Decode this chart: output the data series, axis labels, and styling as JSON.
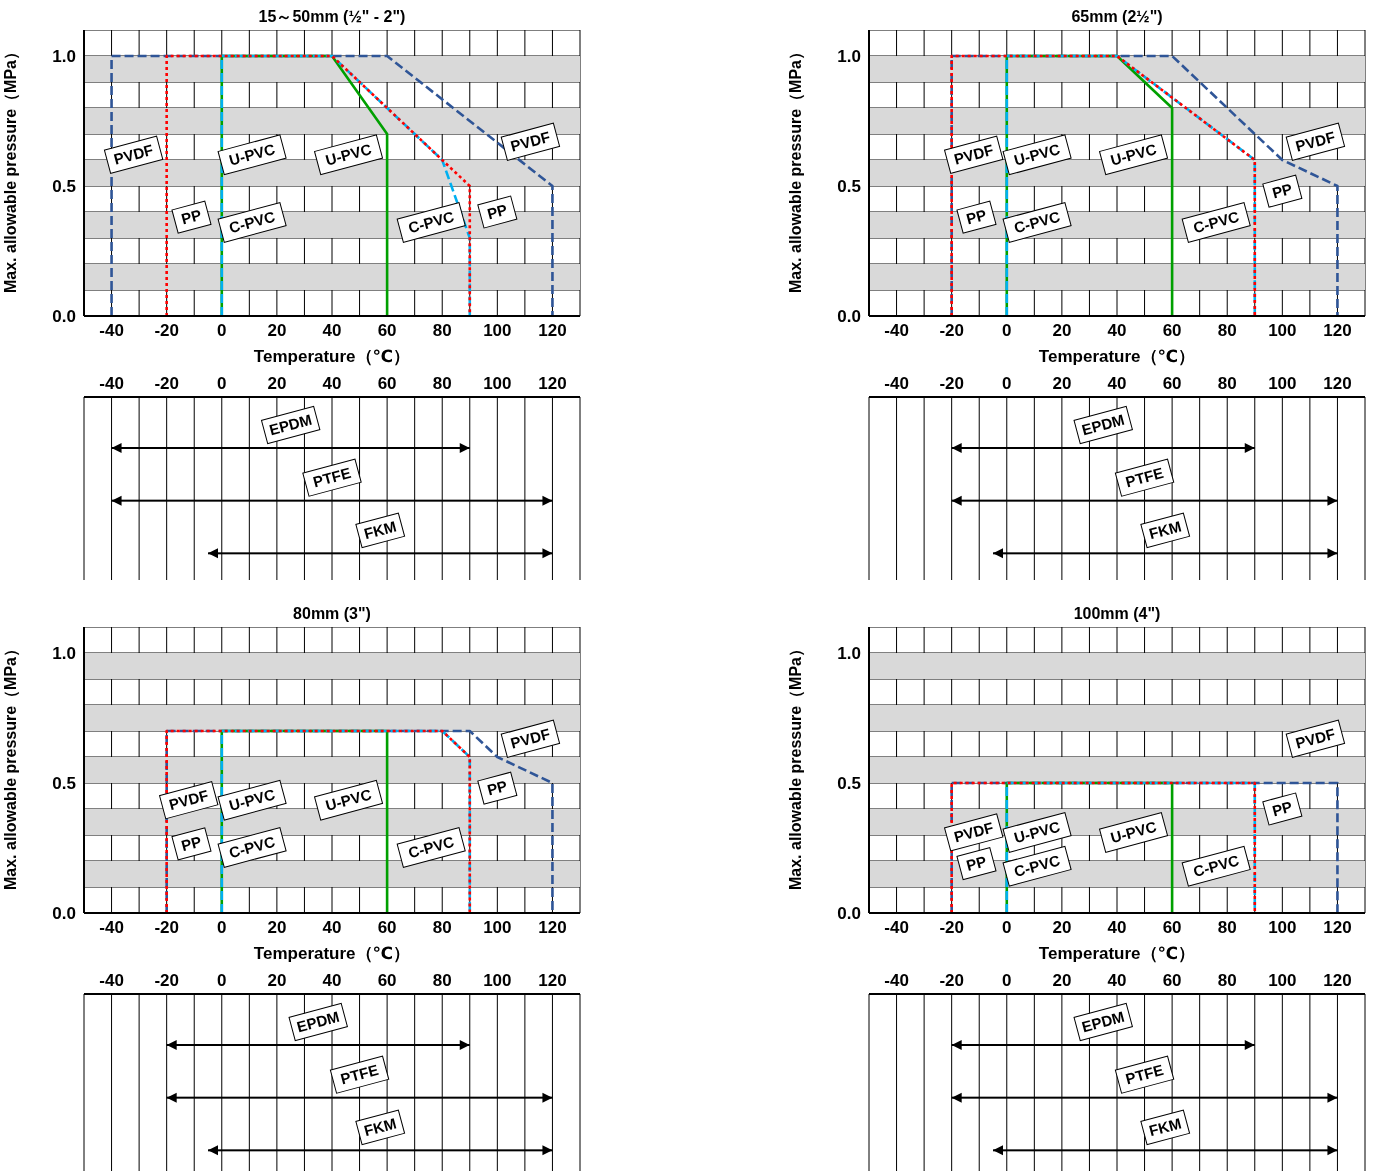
{
  "chart_data": [
    {
      "type": "line",
      "title": "15～50mm (½\" - 2\")",
      "xlabel": "Temperature（℃）",
      "ylabel": "Max. allowable pressure（MPa）",
      "xlim": [
        -50,
        130
      ],
      "xticks": [
        {
          "value": -50,
          "label": null
        },
        -40,
        {
          "value": -30,
          "label": null
        },
        -20,
        {
          "value": -10,
          "label": null
        },
        0,
        {
          "value": 10,
          "label": null
        },
        20,
        {
          "value": 30,
          "label": null
        },
        40,
        {
          "value": 50,
          "label": null
        },
        60,
        {
          "value": 70,
          "label": null
        },
        80,
        {
          "value": 90,
          "label": null
        },
        100,
        {
          "value": 110,
          "label": null
        },
        120,
        {
          "value": 130,
          "label": null
        }
      ],
      "ylim": [
        0,
        1.1
      ],
      "yticks": [
        {
          "value": 0,
          "label": "0.0"
        },
        {
          "value": 0.1,
          "label": null
        },
        {
          "value": 0.2,
          "label": null
        },
        {
          "value": 0.3,
          "label": null
        },
        {
          "value": 0.4,
          "label": null
        },
        {
          "value": 0.5,
          "label": "0.5"
        },
        {
          "value": 0.6,
          "label": null
        },
        {
          "value": 0.7,
          "label": null
        },
        {
          "value": 0.8,
          "label": null
        },
        {
          "value": 0.9,
          "label": null
        },
        {
          "value": 1,
          "label": "1.0"
        },
        {
          "value": 1.1,
          "label": null
        }
      ],
      "grid": true,
      "legend": false,
      "bands": [
        {
          "axis": "y",
          "from": 0.1,
          "to": 0.2,
          "color": "#d9d9d9"
        },
        {
          "axis": "y",
          "from": 0.3,
          "to": 0.4,
          "color": "#d9d9d9"
        },
        {
          "axis": "y",
          "from": 0.5,
          "to": 0.6,
          "color": "#d9d9d9"
        },
        {
          "axis": "y",
          "from": 0.7,
          "to": 0.8,
          "color": "#d9d9d9"
        },
        {
          "axis": "y",
          "from": 0.9,
          "to": 1.0,
          "color": "#d9d9d9"
        }
      ],
      "series": [
        {
          "name": "PVDF",
          "color": "#2f5597",
          "line_style": "dashed",
          "x": [
            -40,
            -40,
            60,
            120,
            120
          ],
          "values": [
            0,
            1.0,
            1.0,
            0.5,
            0
          ]
        },
        {
          "name": "U-PVC",
          "color": "#00a000",
          "line_style": "solid",
          "x": [
            0,
            0,
            40,
            60,
            60
          ],
          "values": [
            0,
            1.0,
            1.0,
            0.7,
            0
          ]
        },
        {
          "name": "C-PVC",
          "color": "#00b0f0",
          "line_style": "dashed",
          "x": [
            0,
            0,
            40,
            80,
            90,
            90
          ],
          "values": [
            0,
            1.0,
            1.0,
            0.6,
            0.3,
            0
          ]
        },
        {
          "name": "PP",
          "color": "#ff0000",
          "line_style": "dotted",
          "x": [
            -20,
            -20,
            40,
            80,
            90,
            90
          ],
          "values": [
            0,
            1.0,
            1.0,
            0.6,
            0.5,
            0
          ]
        }
      ]
    },
    {
      "type": "line",
      "title": "65mm (2½\")",
      "xlabel": "Temperature（℃）",
      "ylabel": "Max. allowable pressure（MPa）",
      "xlim": [
        -50,
        130
      ],
      "xticks": [
        {
          "value": -50,
          "label": null
        },
        -40,
        {
          "value": -30,
          "label": null
        },
        -20,
        {
          "value": -10,
          "label": null
        },
        0,
        {
          "value": 10,
          "label": null
        },
        20,
        {
          "value": 30,
          "label": null
        },
        40,
        {
          "value": 50,
          "label": null
        },
        60,
        {
          "value": 70,
          "label": null
        },
        80,
        {
          "value": 90,
          "label": null
        },
        100,
        {
          "value": 110,
          "label": null
        },
        120,
        {
          "value": 130,
          "label": null
        }
      ],
      "ylim": [
        0,
        1.1
      ],
      "yticks": [
        {
          "value": 0,
          "label": "0.0"
        },
        {
          "value": 0.1,
          "label": null
        },
        {
          "value": 0.2,
          "label": null
        },
        {
          "value": 0.3,
          "label": null
        },
        {
          "value": 0.4,
          "label": null
        },
        {
          "value": 0.5,
          "label": "0.5"
        },
        {
          "value": 0.6,
          "label": null
        },
        {
          "value": 0.7,
          "label": null
        },
        {
          "value": 0.8,
          "label": null
        },
        {
          "value": 0.9,
          "label": null
        },
        {
          "value": 1,
          "label": "1.0"
        },
        {
          "value": 1.1,
          "label": null
        }
      ],
      "grid": true,
      "legend": false,
      "bands": [
        {
          "axis": "y",
          "from": 0.1,
          "to": 0.2,
          "color": "#d9d9d9"
        },
        {
          "axis": "y",
          "from": 0.3,
          "to": 0.4,
          "color": "#d9d9d9"
        },
        {
          "axis": "y",
          "from": 0.5,
          "to": 0.6,
          "color": "#d9d9d9"
        },
        {
          "axis": "y",
          "from": 0.7,
          "to": 0.8,
          "color": "#d9d9d9"
        },
        {
          "axis": "y",
          "from": 0.9,
          "to": 1.0,
          "color": "#d9d9d9"
        }
      ],
      "series": [
        {
          "name": "PVDF",
          "color": "#2f5597",
          "line_style": "dashed",
          "x": [
            -20,
            -20,
            60,
            100,
            120,
            120
          ],
          "values": [
            0,
            1.0,
            1.0,
            0.6,
            0.5,
            0
          ]
        },
        {
          "name": "U-PVC",
          "color": "#00a000",
          "line_style": "solid",
          "x": [
            0,
            0,
            40,
            60,
            60
          ],
          "values": [
            0,
            1.0,
            1.0,
            0.8,
            0
          ]
        },
        {
          "name": "C-PVC",
          "color": "#00b0f0",
          "line_style": "dashed",
          "x": [
            0,
            0,
            40,
            90,
            90
          ],
          "values": [
            0,
            1.0,
            1.0,
            0.6,
            0
          ]
        },
        {
          "name": "PP",
          "color": "#ff0000",
          "line_style": "dotted",
          "x": [
            -20,
            -20,
            40,
            90,
            90
          ],
          "values": [
            0,
            1.0,
            1.0,
            0.6,
            0
          ]
        }
      ]
    },
    {
      "type": "bar",
      "orientation": "horizontal",
      "categories": [
        "EPDM",
        "PTFE",
        "FKM"
      ],
      "base": [
        -40,
        -40,
        -5
      ],
      "values": [
        130,
        160,
        125
      ],
      "color": "#000000",
      "xlim": [
        -50,
        130
      ],
      "xticks": [
        {
          "value": -50,
          "label": null
        },
        -40,
        {
          "value": -30,
          "label": null
        },
        -20,
        {
          "value": -10,
          "label": null
        },
        0,
        {
          "value": 10,
          "label": null
        },
        20,
        {
          "value": 30,
          "label": null
        },
        40,
        {
          "value": 50,
          "label": null
        },
        60,
        {
          "value": 70,
          "label": null
        },
        80,
        {
          "value": 90,
          "label": null
        },
        100,
        {
          "value": 110,
          "label": null
        },
        120,
        {
          "value": 130,
          "label": null
        }
      ],
      "grid": "x",
      "tick_labels": "x"
    },
    {
      "type": "bar",
      "orientation": "horizontal",
      "categories": [
        "EPDM",
        "PTFE",
        "FKM"
      ],
      "base": [
        -20,
        -20,
        -5
      ],
      "values": [
        110,
        140,
        125
      ],
      "color": "#000000",
      "xlim": [
        -50,
        130
      ],
      "xticks": [
        {
          "value": -50,
          "label": null
        },
        -40,
        {
          "value": -30,
          "label": null
        },
        -20,
        {
          "value": -10,
          "label": null
        },
        0,
        {
          "value": 10,
          "label": null
        },
        20,
        {
          "value": 30,
          "label": null
        },
        40,
        {
          "value": 50,
          "label": null
        },
        60,
        {
          "value": 70,
          "label": null
        },
        80,
        {
          "value": 90,
          "label": null
        },
        100,
        {
          "value": 110,
          "label": null
        },
        120,
        {
          "value": 130,
          "label": null
        }
      ],
      "grid": "x",
      "tick_labels": "x"
    },
    {
      "type": "line",
      "title": "80mm (3\")",
      "xlabel": "Temperature（℃）",
      "ylabel": "Max. allowable pressure（MPa）",
      "xlim": [
        -50,
        130
      ],
      "xticks": [
        {
          "value": -50,
          "label": null
        },
        -40,
        {
          "value": -30,
          "label": null
        },
        -20,
        {
          "value": -10,
          "label": null
        },
        0,
        {
          "value": 10,
          "label": null
        },
        20,
        {
          "value": 30,
          "label": null
        },
        40,
        {
          "value": 50,
          "label": null
        },
        60,
        {
          "value": 70,
          "label": null
        },
        80,
        {
          "value": 90,
          "label": null
        },
        100,
        {
          "value": 110,
          "label": null
        },
        120,
        {
          "value": 130,
          "label": null
        }
      ],
      "ylim": [
        0,
        1.1
      ],
      "yticks": [
        {
          "value": 0,
          "label": "0.0"
        },
        {
          "value": 0.1,
          "label": null
        },
        {
          "value": 0.2,
          "label": null
        },
        {
          "value": 0.3,
          "label": null
        },
        {
          "value": 0.4,
          "label": null
        },
        {
          "value": 0.5,
          "label": "0.5"
        },
        {
          "value": 0.6,
          "label": null
        },
        {
          "value": 0.7,
          "label": null
        },
        {
          "value": 0.8,
          "label": null
        },
        {
          "value": 0.9,
          "label": null
        },
        {
          "value": 1,
          "label": "1.0"
        },
        {
          "value": 1.1,
          "label": null
        }
      ],
      "grid": true,
      "legend": false,
      "bands": [
        {
          "axis": "y",
          "from": 0.1,
          "to": 0.2,
          "color": "#d9d9d9"
        },
        {
          "axis": "y",
          "from": 0.3,
          "to": 0.4,
          "color": "#d9d9d9"
        },
        {
          "axis": "y",
          "from": 0.5,
          "to": 0.6,
          "color": "#d9d9d9"
        },
        {
          "axis": "y",
          "from": 0.7,
          "to": 0.8,
          "color": "#d9d9d9"
        },
        {
          "axis": "y",
          "from": 0.9,
          "to": 1.0,
          "color": "#d9d9d9"
        }
      ],
      "series": [
        {
          "name": "PVDF",
          "color": "#2f5597",
          "line_style": "dashed",
          "x": [
            -20,
            -20,
            90,
            100,
            120,
            120
          ],
          "values": [
            0,
            0.7,
            0.7,
            0.6,
            0.5,
            0
          ]
        },
        {
          "name": "U-PVC",
          "color": "#00a000",
          "line_style": "solid",
          "x": [
            0,
            0,
            60,
            60
          ],
          "values": [
            0,
            0.7,
            0.7,
            0
          ]
        },
        {
          "name": "C-PVC",
          "color": "#00b0f0",
          "line_style": "dashed",
          "x": [
            0,
            0,
            80,
            90,
            90
          ],
          "values": [
            0,
            0.7,
            0.7,
            0.6,
            0
          ]
        },
        {
          "name": "PP",
          "color": "#ff0000",
          "line_style": "dotted",
          "x": [
            -20,
            -20,
            80,
            90,
            90
          ],
          "values": [
            0,
            0.7,
            0.7,
            0.6,
            0
          ]
        }
      ]
    },
    {
      "type": "line",
      "title": "100mm (4\")",
      "xlabel": "Temperature（℃）",
      "ylabel": "Max. allowable pressure（MPa）",
      "xlim": [
        -50,
        130
      ],
      "xticks": [
        {
          "value": -50,
          "label": null
        },
        -40,
        {
          "value": -30,
          "label": null
        },
        -20,
        {
          "value": -10,
          "label": null
        },
        0,
        {
          "value": 10,
          "label": null
        },
        20,
        {
          "value": 30,
          "label": null
        },
        40,
        {
          "value": 50,
          "label": null
        },
        60,
        {
          "value": 70,
          "label": null
        },
        80,
        {
          "value": 90,
          "label": null
        },
        100,
        {
          "value": 110,
          "label": null
        },
        120,
        {
          "value": 130,
          "label": null
        }
      ],
      "ylim": [
        0,
        1.1
      ],
      "yticks": [
        {
          "value": 0,
          "label": "0.0"
        },
        {
          "value": 0.1,
          "label": null
        },
        {
          "value": 0.2,
          "label": null
        },
        {
          "value": 0.3,
          "label": null
        },
        {
          "value": 0.4,
          "label": null
        },
        {
          "value": 0.5,
          "label": "0.5"
        },
        {
          "value": 0.6,
          "label": null
        },
        {
          "value": 0.7,
          "label": null
        },
        {
          "value": 0.8,
          "label": null
        },
        {
          "value": 0.9,
          "label": null
        },
        {
          "value": 1,
          "label": "1.0"
        },
        {
          "value": 1.1,
          "label": null
        }
      ],
      "grid": true,
      "legend": false,
      "bands": [
        {
          "axis": "y",
          "from": 0.1,
          "to": 0.2,
          "color": "#d9d9d9"
        },
        {
          "axis": "y",
          "from": 0.3,
          "to": 0.4,
          "color": "#d9d9d9"
        },
        {
          "axis": "y",
          "from": 0.5,
          "to": 0.6,
          "color": "#d9d9d9"
        },
        {
          "axis": "y",
          "from": 0.7,
          "to": 0.8,
          "color": "#d9d9d9"
        },
        {
          "axis": "y",
          "from": 0.9,
          "to": 1.0,
          "color": "#d9d9d9"
        }
      ],
      "series": [
        {
          "name": "PVDF",
          "color": "#2f5597",
          "line_style": "dashed",
          "x": [
            -20,
            -20,
            120,
            120
          ],
          "values": [
            0,
            0.5,
            0.5,
            0
          ]
        },
        {
          "name": "U-PVC",
          "color": "#00a000",
          "line_style": "solid",
          "x": [
            0,
            0,
            60,
            60
          ],
          "values": [
            0,
            0.5,
            0.5,
            0
          ]
        },
        {
          "name": "C-PVC",
          "color": "#00b0f0",
          "line_style": "dashed",
          "x": [
            0,
            0,
            90,
            90
          ],
          "values": [
            0,
            0.5,
            0.5,
            0
          ]
        },
        {
          "name": "PP",
          "color": "#ff0000",
          "line_style": "dotted",
          "x": [
            -20,
            -20,
            90,
            90
          ],
          "values": [
            0,
            0.5,
            0.5,
            0
          ]
        }
      ]
    },
    {
      "type": "bar",
      "orientation": "horizontal",
      "categories": [
        "EPDM",
        "PTFE",
        "FKM"
      ],
      "base": [
        -20,
        -20,
        -5
      ],
      "values": [
        110,
        140,
        125
      ],
      "color": "#000000",
      "xlim": [
        -50,
        130
      ],
      "xticks": [
        {
          "value": -50,
          "label": null
        },
        -40,
        {
          "value": -30,
          "label": null
        },
        -20,
        {
          "value": -10,
          "label": null
        },
        0,
        {
          "value": 10,
          "label": null
        },
        20,
        {
          "value": 30,
          "label": null
        },
        40,
        {
          "value": 50,
          "label": null
        },
        60,
        {
          "value": 70,
          "label": null
        },
        80,
        {
          "value": 90,
          "label": null
        },
        100,
        {
          "value": 110,
          "label": null
        },
        120,
        {
          "value": 130,
          "label": null
        }
      ],
      "grid": "x",
      "tick_labels": "x"
    },
    {
      "type": "bar",
      "orientation": "horizontal",
      "categories": [
        "EPDM",
        "PTFE",
        "FKM"
      ],
      "base": [
        -20,
        -20,
        -5
      ],
      "values": [
        110,
        140,
        125
      ],
      "color": "#000000",
      "xlim": [
        -50,
        130
      ],
      "xticks": [
        {
          "value": -50,
          "label": null
        },
        -40,
        {
          "value": -30,
          "label": null
        },
        -20,
        {
          "value": -10,
          "label": null
        },
        0,
        {
          "value": 10,
          "label": null
        },
        20,
        {
          "value": 30,
          "label": null
        },
        40,
        {
          "value": 50,
          "label": null
        },
        60,
        {
          "value": 70,
          "label": null
        },
        80,
        {
          "value": 90,
          "label": null
        },
        100,
        {
          "value": 110,
          "label": null
        },
        120,
        {
          "value": 130,
          "label": null
        }
      ],
      "grid": "x",
      "tick_labels": "x"
    }
  ]
}
